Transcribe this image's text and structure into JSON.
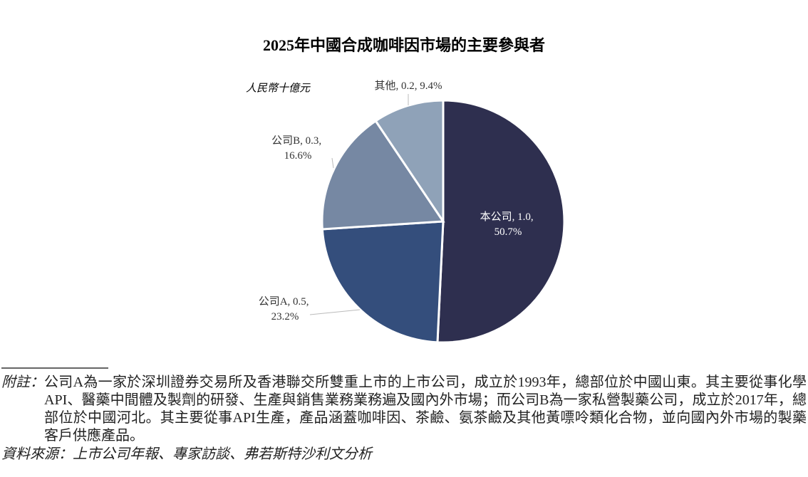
{
  "chart_data": {
    "type": "pie",
    "title": "2025年中國合成咖啡因市場的主要參與者",
    "unit_label": "人民幣十億元",
    "categories": [
      "本公司",
      "公司A",
      "公司B",
      "其他"
    ],
    "label_separator": ", ",
    "amounts": [
      1.0,
      0.5,
      0.3,
      0.2
    ],
    "amount_labels": [
      "1.0",
      "0.5",
      "0.3",
      "0.2"
    ],
    "values": [
      50.7,
      23.2,
      16.6,
      9.4
    ],
    "value_labels": [
      "50.7%",
      "23.2%",
      "16.6%",
      "9.4%"
    ],
    "colors": [
      "#2e2f4f",
      "#344e7c",
      "#7688a3",
      "#8fa2b8"
    ]
  },
  "notes": {
    "label": "附註：",
    "text": "公司A為一家於深圳證券交易所及香港聯交所雙重上市的上市公司，成立於1993年，總部位於中國山東。其主要從事化學API、醫藥中間體及製劑的研發、生產與銷售業務業務遍及國內外市場；而公司B為一家私營製藥公司，成立於2017年，總部位於中國河北。其主要從事API生產，產品涵蓋咖啡因、茶鹼、氨茶鹼及其他黃嘌呤類化合物，並向國內外市場的製藥客戶供應產品。"
  },
  "source": "資料來源：上市公司年報、專家訪談、弗若斯特沙利文分析"
}
